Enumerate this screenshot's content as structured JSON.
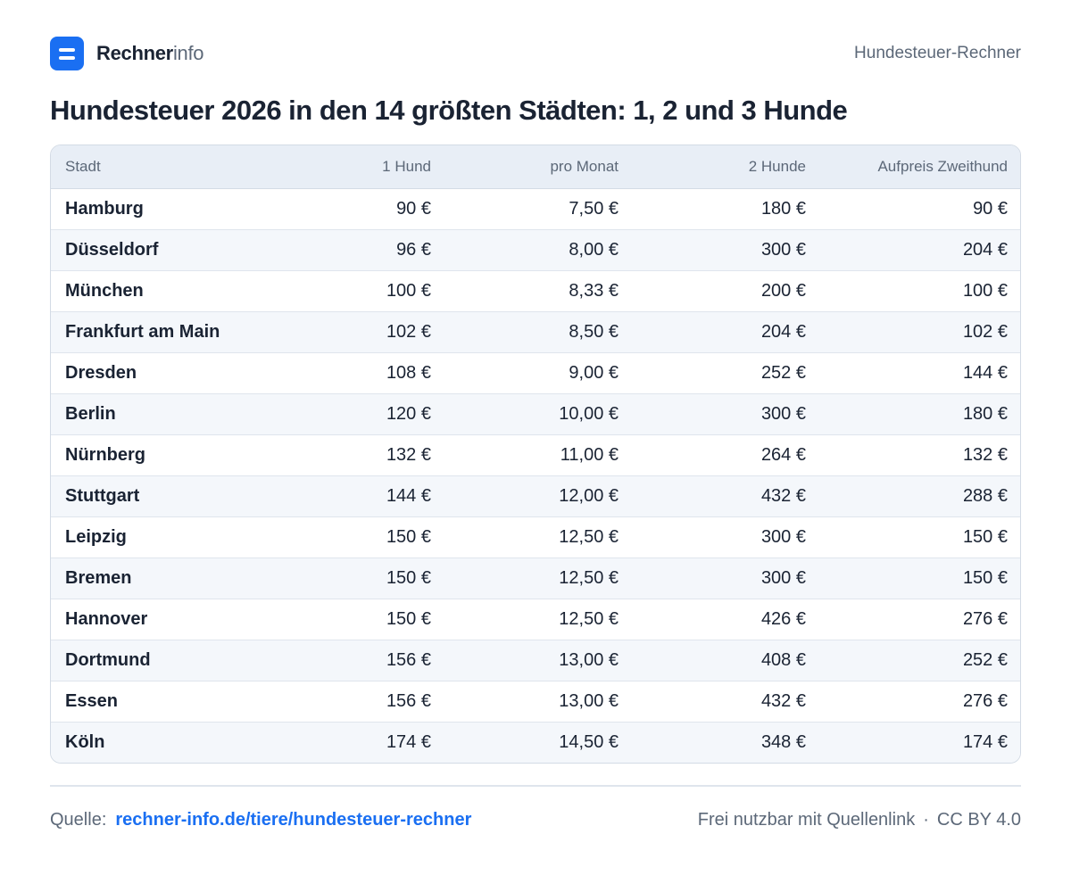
{
  "header": {
    "brand_bold": "Rechner",
    "brand_light": "info",
    "right_label": "Hundesteuer-Rechner"
  },
  "title": "Hundesteuer 2026 in den 14 größten Städten: 1, 2 und 3 Hunde",
  "table": {
    "columns": [
      "Stadt",
      "1 Hund",
      "pro Monat",
      "2 Hunde",
      "Aufpreis Zweithund"
    ],
    "rows": [
      [
        "Hamburg",
        "90 €",
        "7,50 €",
        "180 €",
        "90 €"
      ],
      [
        "Düsseldorf",
        "96 €",
        "8,00 €",
        "300 €",
        "204 €"
      ],
      [
        "München",
        "100 €",
        "8,33 €",
        "200 €",
        "100 €"
      ],
      [
        "Frankfurt am Main",
        "102 €",
        "8,50 €",
        "204 €",
        "102 €"
      ],
      [
        "Dresden",
        "108 €",
        "9,00 €",
        "252 €",
        "144 €"
      ],
      [
        "Berlin",
        "120 €",
        "10,00 €",
        "300 €",
        "180 €"
      ],
      [
        "Nürnberg",
        "132 €",
        "11,00 €",
        "264 €",
        "132 €"
      ],
      [
        "Stuttgart",
        "144 €",
        "12,00 €",
        "432 €",
        "288 €"
      ],
      [
        "Leipzig",
        "150 €",
        "12,50 €",
        "300 €",
        "150 €"
      ],
      [
        "Bremen",
        "150 €",
        "12,50 €",
        "300 €",
        "150 €"
      ],
      [
        "Hannover",
        "150 €",
        "12,50 €",
        "426 €",
        "276 €"
      ],
      [
        "Dortmund",
        "156 €",
        "13,00 €",
        "408 €",
        "252 €"
      ],
      [
        "Essen",
        "156 €",
        "13,00 €",
        "432 €",
        "276 €"
      ],
      [
        "Köln",
        "174 €",
        "14,50 €",
        "348 €",
        "174 €"
      ]
    ]
  },
  "footer": {
    "source_label": "Quelle:",
    "source_link": "rechner-info.de/tiere/hundesteuer-rechner",
    "license_text": "Frei nutzbar mit Quellenlink",
    "separator": "·",
    "license": "CC BY 4.0"
  },
  "colors": {
    "accent": "#1a6ff2",
    "text": "#1a2333",
    "muted": "#5c6878",
    "header_bg": "#e8eef6",
    "stripe_bg": "#f4f7fb"
  },
  "icons": {
    "logo": "rechnerinfo-logo-icon"
  }
}
